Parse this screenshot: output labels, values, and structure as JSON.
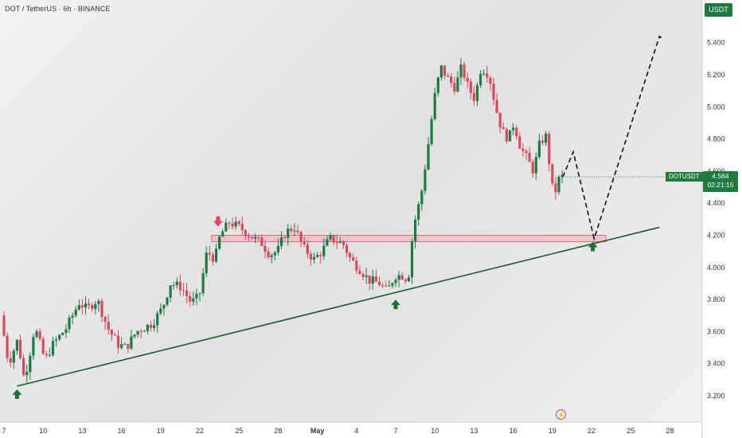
{
  "header": {
    "symbol_title": "DOT / TetherUS · 6h · BINANCE"
  },
  "currency_badge": "USDT",
  "ticker_label": "DOTUSDT",
  "price_badge": {
    "price": "4.564",
    "countdown": "02:21:15"
  },
  "colors": {
    "up": "#1e7a43",
    "down": "#d64a5b",
    "trendline": "#1a5a2a",
    "zone_fill": "#f2b7bf",
    "zone_stroke": "#d9707f",
    "arrow_up": "#1f6f35",
    "arrow_down": "#d94a5a"
  },
  "icons": {
    "replay": "lightning-circle-icon"
  },
  "chart_data": {
    "type": "candlestick",
    "title": "DOT / TetherUS · 6h · BINANCE",
    "xlabel": "",
    "ylabel": "",
    "ylim": [
      3.1,
      5.6
    ],
    "x_range": [
      7,
      60
    ],
    "x_ticks": [
      {
        "x": 7,
        "label": "7"
      },
      {
        "x": 10,
        "label": "10"
      },
      {
        "x": 13,
        "label": "13"
      },
      {
        "x": 16,
        "label": "16"
      },
      {
        "x": 19,
        "label": "19"
      },
      {
        "x": 22,
        "label": "22"
      },
      {
        "x": 25,
        "label": "25"
      },
      {
        "x": 28,
        "label": "28"
      },
      {
        "x": 31,
        "label": "May"
      },
      {
        "x": 34,
        "label": "4"
      },
      {
        "x": 37,
        "label": "7"
      },
      {
        "x": 40,
        "label": "10"
      },
      {
        "x": 43,
        "label": "13"
      },
      {
        "x": 46,
        "label": "16"
      },
      {
        "x": 49,
        "label": "19"
      },
      {
        "x": 52,
        "label": "22"
      },
      {
        "x": 55,
        "label": "25"
      },
      {
        "x": 58,
        "label": "28"
      }
    ],
    "y_ticks": [
      3.2,
      3.4,
      3.6,
      3.8,
      4.0,
      4.2,
      4.4,
      4.6,
      4.8,
      5.0,
      5.2,
      5.4
    ],
    "last_price": 4.564,
    "anchors": [
      [
        7.0,
        3.7
      ],
      [
        7.6,
        3.4
      ],
      [
        8.3,
        3.55
      ],
      [
        8.8,
        3.3
      ],
      [
        9.2,
        3.45
      ],
      [
        9.6,
        3.63
      ],
      [
        10.4,
        3.42
      ],
      [
        11.0,
        3.52
      ],
      [
        12.0,
        3.62
      ],
      [
        13.0,
        3.78
      ],
      [
        13.6,
        3.74
      ],
      [
        14.4,
        3.8
      ],
      [
        15.2,
        3.62
      ],
      [
        16.0,
        3.52
      ],
      [
        16.6,
        3.5
      ],
      [
        17.4,
        3.6
      ],
      [
        18.6,
        3.65
      ],
      [
        19.4,
        3.75
      ],
      [
        20.0,
        3.9
      ],
      [
        20.8,
        3.88
      ],
      [
        21.6,
        3.78
      ],
      [
        22.2,
        3.82
      ],
      [
        22.8,
        4.1
      ],
      [
        23.4,
        4.05
      ],
      [
        23.8,
        4.2
      ],
      [
        24.5,
        4.28
      ],
      [
        25.3,
        4.25
      ],
      [
        26.4,
        4.18
      ],
      [
        27.0,
        4.15
      ],
      [
        27.6,
        4.08
      ],
      [
        28.2,
        4.1
      ],
      [
        28.8,
        4.22
      ],
      [
        29.5,
        4.25
      ],
      [
        30.2,
        4.12
      ],
      [
        31.0,
        4.05
      ],
      [
        31.6,
        4.1
      ],
      [
        32.2,
        4.18
      ],
      [
        33.2,
        4.15
      ],
      [
        33.8,
        4.05
      ],
      [
        34.6,
        3.98
      ],
      [
        35.2,
        3.92
      ],
      [
        36.0,
        3.9
      ],
      [
        36.6,
        3.85
      ],
      [
        37.2,
        3.95
      ],
      [
        37.8,
        3.95
      ],
      [
        38.2,
        3.92
      ],
      [
        38.6,
        4.25
      ],
      [
        39.2,
        4.45
      ],
      [
        39.8,
        4.8
      ],
      [
        40.2,
        5.05
      ],
      [
        40.7,
        5.25
      ],
      [
        41.2,
        5.18
      ],
      [
        41.8,
        5.12
      ],
      [
        42.3,
        5.25
      ],
      [
        42.8,
        5.12
      ],
      [
        43.3,
        5.05
      ],
      [
        43.8,
        5.25
      ],
      [
        44.4,
        5.2
      ],
      [
        44.9,
        5.0
      ],
      [
        45.4,
        4.85
      ],
      [
        45.9,
        4.8
      ],
      [
        46.3,
        4.9
      ],
      [
        46.8,
        4.75
      ],
      [
        47.3,
        4.68
      ],
      [
        47.8,
        4.6
      ],
      [
        48.3,
        4.78
      ],
      [
        48.8,
        4.82
      ],
      [
        49.2,
        4.5
      ],
      [
        49.5,
        4.48
      ],
      [
        49.8,
        4.564
      ]
    ],
    "trendline": {
      "start": [
        8.0,
        3.26
      ],
      "end": [
        57.2,
        4.25
      ]
    },
    "resistance_zone": {
      "x_start": 22.9,
      "x_end": 53.1,
      "y_low": 4.16,
      "y_high": 4.2
    },
    "projection": [
      [
        49.8,
        4.564
      ],
      [
        50.6,
        4.72
      ],
      [
        52.2,
        4.18
      ],
      [
        57.2,
        5.44
      ],
      [
        57.5,
        5.42
      ]
    ],
    "markers": [
      {
        "type": "arrow_up",
        "x": 8.0,
        "y": 3.26
      },
      {
        "type": "arrow_down",
        "x": 23.4,
        "y": 4.22
      },
      {
        "type": "arrow_up",
        "x": 37.0,
        "y": 3.82
      },
      {
        "type": "arrow_up",
        "x": 52.1,
        "y": 4.18
      }
    ]
  }
}
